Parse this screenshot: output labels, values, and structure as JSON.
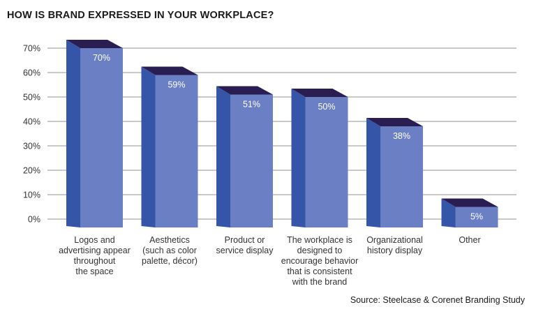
{
  "chart_data": {
    "type": "bar",
    "title": "HOW IS BRAND EXPRESSED IN YOUR WORKPLACE?",
    "categories": [
      [
        "Logos and",
        "advertising appear",
        "throughout",
        "the space"
      ],
      [
        "Aesthetics",
        "(such as color",
        "palette, décor)"
      ],
      [
        "Product or",
        "service display"
      ],
      [
        "The workplace is",
        "designed to",
        "encourage behavior",
        "that is consistent",
        "with the brand"
      ],
      [
        "Organizational",
        "history display"
      ],
      [
        "Other"
      ]
    ],
    "values": [
      70,
      59,
      51,
      50,
      38,
      5
    ],
    "value_labels": [
      "70%",
      "59%",
      "51%",
      "50%",
      "38%",
      "5%"
    ],
    "yticks": [
      "0%",
      "10%",
      "20%",
      "30%",
      "40%",
      "50%",
      "60%",
      "70%"
    ],
    "ylim": [
      0,
      70
    ],
    "grid": true,
    "source": "Source: Steelcase & Corenet Branding Study",
    "colors": {
      "front": "#6b7fc4",
      "side": "#3556a8",
      "top": "#2a1d52",
      "grid": "#c9c9c9"
    }
  }
}
